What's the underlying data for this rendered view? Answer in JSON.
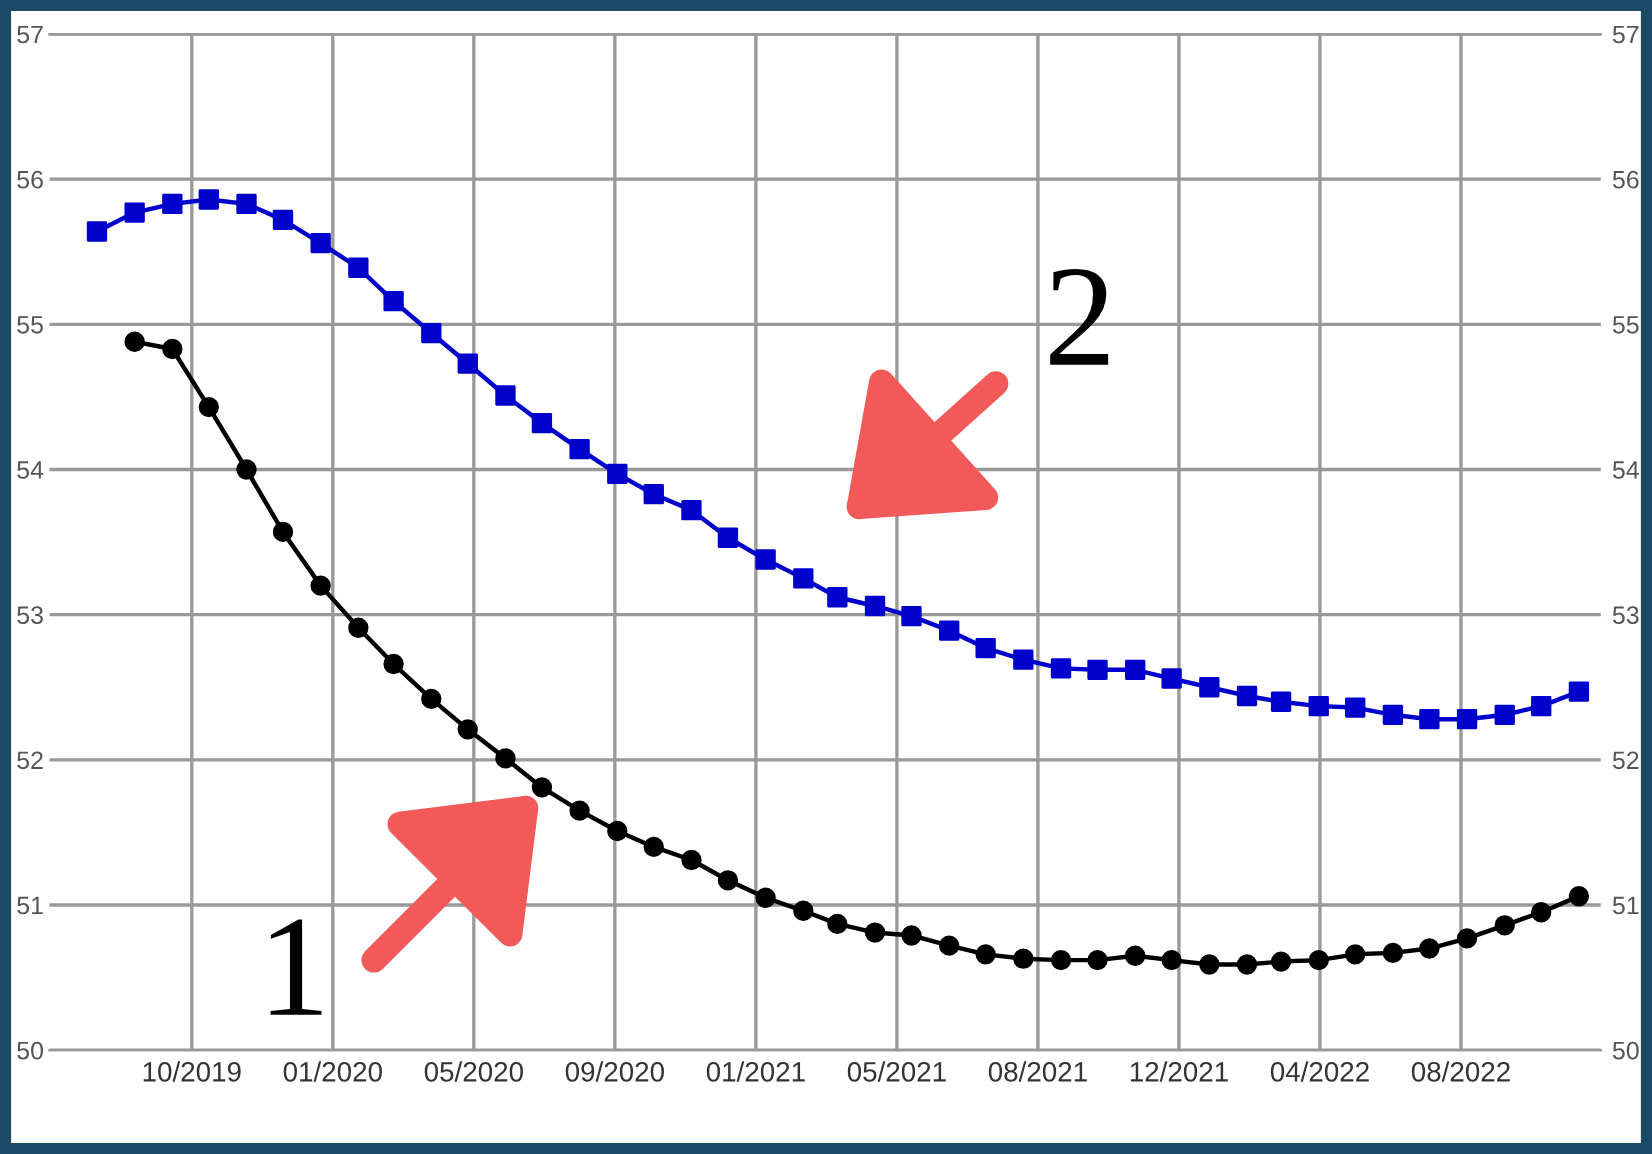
{
  "chart_data": {
    "type": "line",
    "x": [
      "2019-07-15",
      "2019-08-15",
      "2019-09-15",
      "2019-10-15",
      "2019-11-15",
      "2019-12-15",
      "2020-01-15",
      "2020-02-15",
      "2020-03-15",
      "2020-04-15",
      "2020-05-15",
      "2020-06-15",
      "2020-07-15",
      "2020-08-15",
      "2020-09-15",
      "2020-10-15",
      "2020-11-15",
      "2020-12-15",
      "2021-01-15",
      "2021-02-15",
      "2021-03-15",
      "2021-04-15",
      "2021-05-15",
      "2021-06-15",
      "2021-07-15",
      "2021-08-15",
      "2021-09-15",
      "2021-10-15",
      "2021-11-15",
      "2021-12-15",
      "2022-01-15",
      "2022-02-15",
      "2022-03-15",
      "2022-04-15",
      "2022-05-15",
      "2022-06-15",
      "2022-07-15",
      "2022-08-15",
      "2022-09-15",
      "2022-10-15",
      "2022-11-15"
    ],
    "series": [
      {
        "color": "#000000",
        "marker": "circle",
        "x": [
          "2019-08-15",
          "2019-09-15",
          "2019-10-15",
          "2019-11-15",
          "2019-12-15",
          "2020-01-15",
          "2020-02-15",
          "2020-03-15",
          "2020-04-15",
          "2020-05-15",
          "2020-06-15",
          "2020-07-15",
          "2020-08-15",
          "2020-09-15",
          "2020-10-15",
          "2020-11-15",
          "2020-12-15",
          "2021-01-15",
          "2021-02-15",
          "2021-03-15",
          "2021-04-15",
          "2021-05-15",
          "2021-06-15",
          "2021-07-15",
          "2021-08-15",
          "2021-09-15",
          "2021-10-15",
          "2021-11-15",
          "2021-12-15",
          "2022-01-15",
          "2022-02-15",
          "2022-03-15",
          "2022-04-15",
          "2022-05-15",
          "2022-06-15",
          "2022-07-15",
          "2022-08-15",
          "2022-09-15",
          "2022-10-15",
          "2022-11-15"
        ],
        "values": [
          54.88,
          54.83,
          54.43,
          54.0,
          53.57,
          53.2,
          52.91,
          52.66,
          52.42,
          52.21,
          52.01,
          51.81,
          51.65,
          51.51,
          51.4,
          51.31,
          51.17,
          51.05,
          50.96,
          50.87,
          50.81,
          50.79,
          50.72,
          50.66,
          50.63,
          50.62,
          50.62,
          50.65,
          50.62,
          50.59,
          50.59,
          50.61,
          50.62,
          50.66,
          50.67,
          50.7,
          50.77,
          50.86,
          50.95,
          51.06
        ]
      },
      {
        "color": "#0000cc",
        "marker": "square",
        "values": [
          55.64,
          55.77,
          55.83,
          55.86,
          55.83,
          55.72,
          55.56,
          55.39,
          55.16,
          54.94,
          54.73,
          54.51,
          54.32,
          54.14,
          53.97,
          53.83,
          53.72,
          53.53,
          53.38,
          53.25,
          53.12,
          53.06,
          52.99,
          52.89,
          52.77,
          52.69,
          52.63,
          52.62,
          52.62,
          52.56,
          52.5,
          52.44,
          52.4,
          52.37,
          52.36,
          52.31,
          52.28,
          52.28,
          52.31,
          52.37,
          52.47
        ]
      }
    ],
    "xlim": [
      "2019-06-06",
      "2022-12-03"
    ],
    "xticks": [
      {
        "value": "2019-10-01",
        "label": "10/2019"
      },
      {
        "value": "2020-01-25",
        "label": "01/2020"
      },
      {
        "value": "2020-05-20",
        "label": "05/2020"
      },
      {
        "value": "2020-09-13",
        "label": "09/2020"
      },
      {
        "value": "2021-01-07",
        "label": "01/2021"
      },
      {
        "value": "2021-05-03",
        "label": "05/2021"
      },
      {
        "value": "2021-08-27",
        "label": "08/2021"
      },
      {
        "value": "2021-12-21",
        "label": "12/2021"
      },
      {
        "value": "2022-04-16",
        "label": "04/2022"
      },
      {
        "value": "2022-08-10",
        "label": "08/2022"
      }
    ],
    "ylim": [
      50,
      57
    ],
    "yticks": [
      50,
      51,
      52,
      53,
      54,
      55,
      56,
      57
    ],
    "y2lim": [
      50,
      57
    ],
    "y2ticks": [
      50,
      51,
      52,
      53,
      54,
      55,
      56,
      57
    ],
    "grid": true,
    "legend": false,
    "line_style": "solid",
    "annotations": [
      "1",
      "2"
    ]
  }
}
